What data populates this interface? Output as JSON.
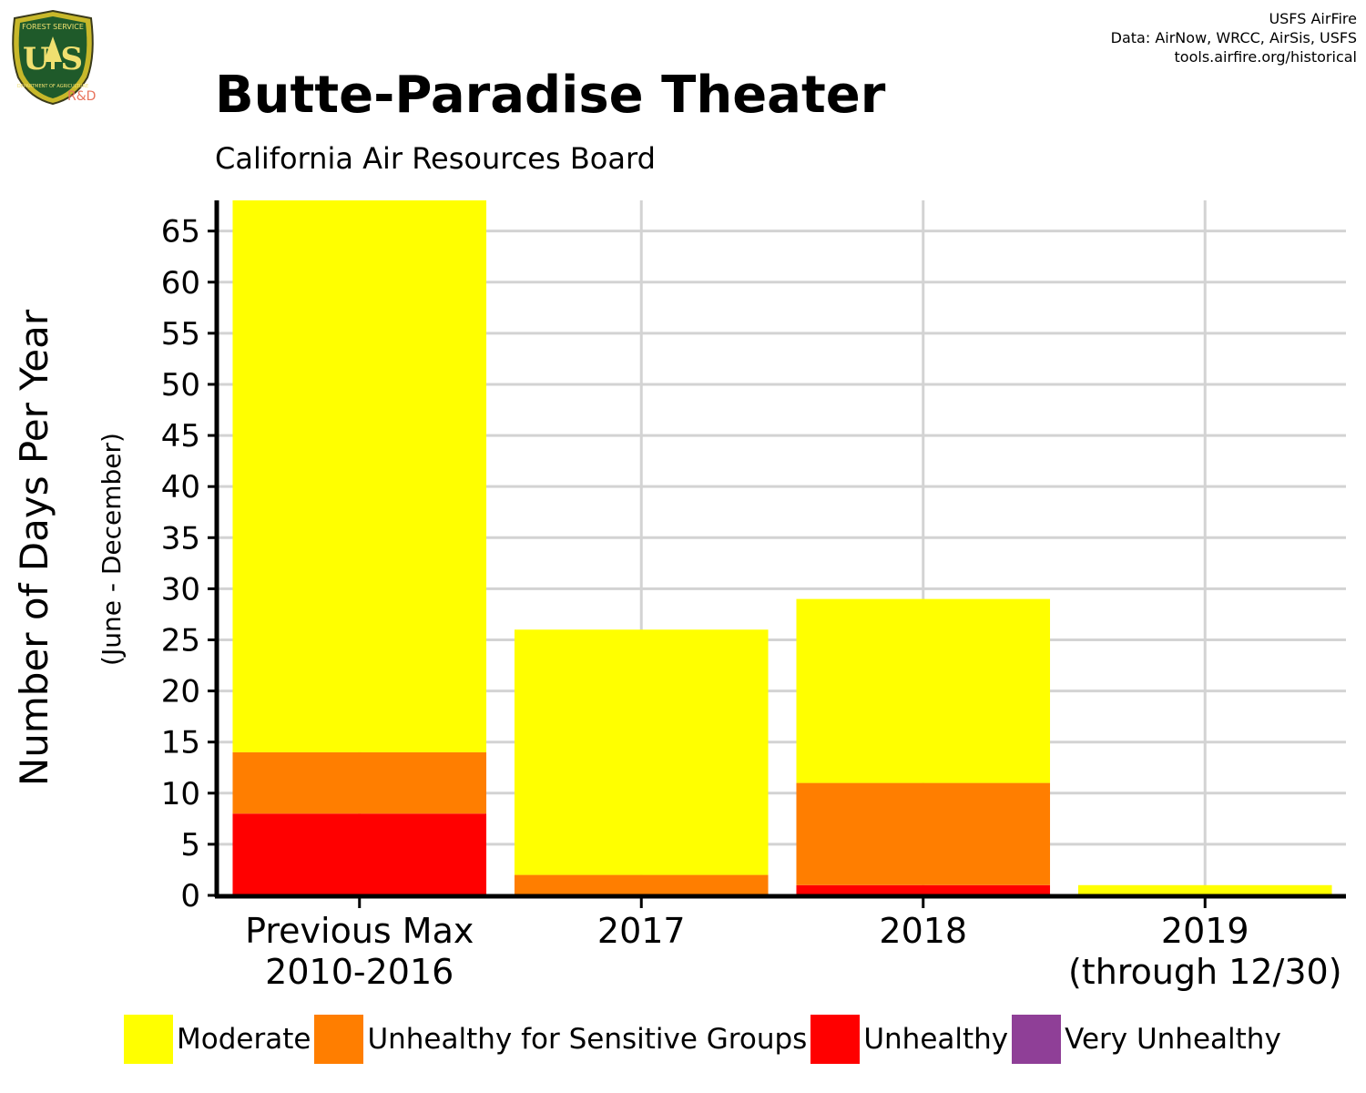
{
  "header": {
    "title": "Butte-Paradise Theater",
    "subtitle": "California Air Resources Board",
    "credits": [
      "USFS AirFire",
      "Data: AirNow, WRCC, AirSis, USFS",
      "tools.airfire.org/historical"
    ]
  },
  "logo": {
    "text_top": "FOREST SERVICE",
    "text_main": "U S",
    "text_bottom": "DEPARTMENT OF AGRICULTURE",
    "tag": "R&D",
    "icon": "usfs-shield-icon"
  },
  "colors": {
    "moderate": "#ffff00",
    "usg": "#ff7e00",
    "unhealthy": "#ff0000",
    "very_unhealthy": "#8f3f97",
    "grid": "#d3d3d3",
    "axis": "#000000"
  },
  "chart_data": {
    "type": "bar",
    "stacked": true,
    "title": "Butte-Paradise Theater",
    "subtitle": "California Air Resources Board",
    "ylabel": "Number of Days Per Year",
    "ylabel_sub": "(June - December)",
    "xlabel": "",
    "ylim": [
      0,
      68
    ],
    "yticks": [
      0,
      5,
      10,
      15,
      20,
      25,
      30,
      35,
      40,
      45,
      50,
      55,
      60,
      65
    ],
    "grid": true,
    "legend_position": "bottom",
    "categories": [
      [
        "Previous Max",
        "2010-2016"
      ],
      [
        "2017"
      ],
      [
        "2018"
      ],
      [
        "2019",
        "(through 12/30)"
      ]
    ],
    "series": [
      {
        "name": "Unhealthy",
        "color": "#ff0000",
        "values": [
          8,
          0,
          1,
          0
        ]
      },
      {
        "name": "Unhealthy for Sensitive Groups",
        "color": "#ff7e00",
        "values": [
          6,
          2,
          10,
          0
        ]
      },
      {
        "name": "Moderate",
        "color": "#ffff00",
        "values": [
          54,
          24,
          18,
          1
        ]
      }
    ],
    "legend": [
      {
        "label": "Moderate",
        "color": "#ffff00"
      },
      {
        "label": "Unhealthy for Sensitive Groups",
        "color": "#ff7e00"
      },
      {
        "label": "Unhealthy",
        "color": "#ff0000"
      },
      {
        "label": "Very Unhealthy",
        "color": "#8f3f97"
      }
    ]
  }
}
